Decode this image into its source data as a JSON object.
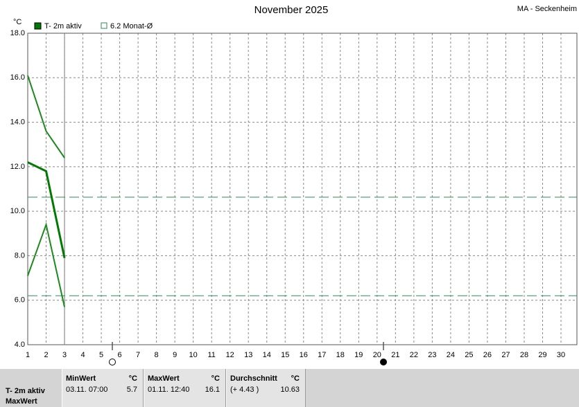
{
  "chart_data": {
    "type": "line",
    "title": "November 2025",
    "location": "MA - Seckenheim",
    "y_unit": "°C",
    "x": [
      1,
      2,
      3
    ],
    "series": [
      {
        "name": "T- 2m aktiv",
        "color": "#007a00",
        "width": 3,
        "values": [
          12.2,
          11.8,
          7.9
        ]
      },
      {
        "color": "#1a8a1a",
        "width": 2,
        "values": [
          16.1,
          13.6,
          12.4
        ]
      },
      {
        "color": "#1a8a1a",
        "width": 2,
        "values": [
          7.1,
          9.4,
          5.7
        ]
      }
    ],
    "reference_lines": [
      {
        "name": "6.2 Monat-Ø",
        "value": 6.2,
        "color": "#2e8b57"
      },
      {
        "value": 10.63,
        "color": "#2e8b57"
      }
    ],
    "today": 3,
    "xlim": [
      1,
      30
    ],
    "xticks": [
      1,
      2,
      3,
      4,
      5,
      6,
      7,
      8,
      9,
      10,
      11,
      12,
      13,
      14,
      15,
      16,
      17,
      18,
      19,
      20,
      21,
      22,
      23,
      24,
      25,
      26,
      27,
      28,
      29,
      30
    ],
    "ylim": [
      4,
      18
    ],
    "yticks": [
      {
        "value": 4,
        "label": "4.0"
      },
      {
        "value": 6,
        "label": "6.0"
      },
      {
        "value": 8,
        "label": "8.0"
      },
      {
        "value": 10,
        "label": "10.0"
      },
      {
        "value": 12,
        "label": "12.0"
      },
      {
        "value": 14,
        "label": "14.0"
      },
      {
        "value": 16,
        "label": "16.0"
      },
      {
        "value": 18,
        "label": "18.0"
      }
    ],
    "grid": true
  },
  "table": {
    "row_labels": [
      "T- 2m aktiv",
      "MaxWert"
    ],
    "columns": [
      {
        "header": "MinWert",
        "unit": "°C",
        "time": "03.11. 07:00",
        "value": 5.7
      },
      {
        "header": "MaxWert",
        "unit": "°C",
        "time": "01.11. 12:40",
        "value": 16.1
      },
      {
        "header": "Durchschnitt",
        "unit": "°C",
        "time": "(+ 4.43 )",
        "value": 10.63
      }
    ]
  }
}
